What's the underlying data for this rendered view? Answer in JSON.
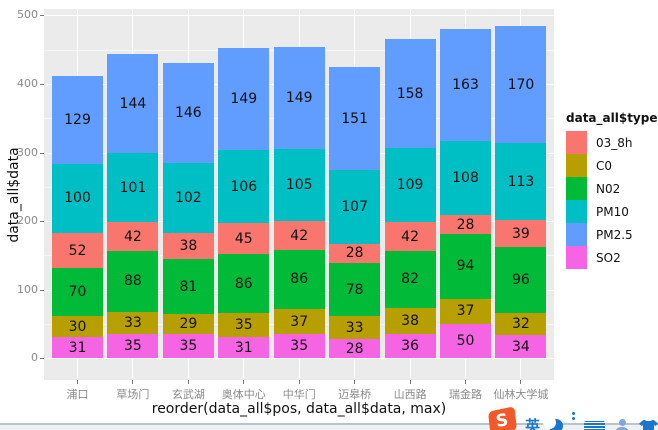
{
  "chart_data": {
    "type": "bar",
    "stacked": true,
    "xlabel": "reorder(data_all$pos, data_all$data, max)",
    "ylabel": "data_all$data",
    "ylim": [
      0,
      500
    ],
    "yticks": [
      0,
      100,
      200,
      300,
      400,
      500
    ],
    "minor_ticks": [
      50,
      150,
      250,
      350,
      450
    ],
    "grid": true,
    "panel_bg": "#EBEBEB",
    "grid_color": "#FFFFFF",
    "categories": [
      "浦口",
      "草场门",
      "玄武湖",
      "奥体中心",
      "中华门",
      "迈皋桥",
      "山西路",
      "瑞金路",
      "仙林大学城"
    ],
    "series": [
      {
        "name": "SO2",
        "color": "#F564E3",
        "values": [
          31,
          35,
          35,
          31,
          35,
          28,
          36,
          50,
          34
        ]
      },
      {
        "name": "C0",
        "color": "#B79F00",
        "values": [
          30,
          33,
          29,
          35,
          37,
          33,
          38,
          37,
          32
        ]
      },
      {
        "name": "N02",
        "color": "#00BA38",
        "values": [
          70,
          88,
          81,
          86,
          86,
          78,
          82,
          94,
          96
        ]
      },
      {
        "name": "03_8h",
        "color": "#F8766D",
        "values": [
          52,
          42,
          38,
          45,
          42,
          28,
          42,
          28,
          39
        ]
      },
      {
        "name": "PM10",
        "color": "#00BFC4",
        "values": [
          100,
          101,
          102,
          106,
          105,
          107,
          109,
          108,
          113
        ]
      },
      {
        "name": "PM2.5",
        "color": "#619CFF",
        "values": [
          129,
          144,
          146,
          149,
          149,
          151,
          158,
          163,
          170
        ]
      }
    ],
    "stack_order_bottom_to_top": [
      "SO2",
      "C0",
      "N02",
      "03_8h",
      "PM10",
      "PM2.5"
    ],
    "bar_value_labels_shown": true,
    "legend": {
      "title": "data_all$type",
      "position": "right",
      "entries": [
        {
          "label": "03_8h",
          "color": "#F8766D"
        },
        {
          "label": "C0",
          "color": "#B79F00"
        },
        {
          "label": "N02",
          "color": "#00BA38"
        },
        {
          "label": "PM10",
          "color": "#00BFC4"
        },
        {
          "label": "PM2.5",
          "color": "#619CFF"
        },
        {
          "label": "SO2",
          "color": "#F564E3"
        }
      ]
    }
  },
  "taskbar": {
    "ime_logo": "S",
    "ime_mode_label": "英",
    "icons": [
      "sogou-logo",
      "english-mode-icon",
      "night-mode-icon",
      "keyboard-icon",
      "user-icon",
      "skin-icon"
    ]
  }
}
